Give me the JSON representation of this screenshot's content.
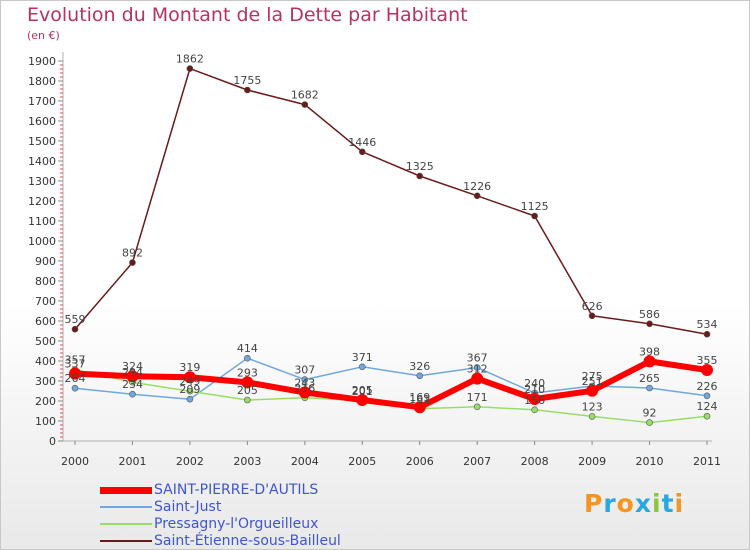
{
  "chart_data": {
    "type": "line",
    "title": "Evolution du Montant de la Dette par Habitant",
    "subtitle": "(en €)",
    "x": [
      "2000",
      "2001",
      "2002",
      "2003",
      "2004",
      "2005",
      "2006",
      "2007",
      "2008",
      "2009",
      "2010",
      "2011"
    ],
    "ylim": [
      0,
      1900
    ],
    "yticks": [
      0,
      100,
      200,
      300,
      400,
      500,
      600,
      700,
      800,
      900,
      1000,
      1100,
      1200,
      1300,
      1400,
      1500,
      1600,
      1700,
      1800,
      1900
    ],
    "grid": false,
    "legend_position": "bottom-left",
    "series": [
      {
        "name": "SAINT-PIERRE-D'AUTILS",
        "color": "#ff0000",
        "values": [
          337,
          324,
          319,
          293,
          243,
          205,
          169,
          312,
          210,
          251,
          398,
          355
        ]
      },
      {
        "name": "Saint-Just",
        "color": "#6fa8dc",
        "values": [
          264,
          234,
          209,
          414,
          307,
          371,
          326,
          367,
          240,
          275,
          265,
          226
        ]
      },
      {
        "name": "Pressagny-l'Orgueilleux",
        "color": "#99dd66",
        "values": [
          357,
          294,
          249,
          205,
          216,
          201,
          161,
          171,
          156,
          123,
          92,
          124
        ]
      },
      {
        "name": "Saint-Étienne-sous-Bailleul",
        "color": "#6b1a1a",
        "values": [
          559,
          892,
          1862,
          1755,
          1682,
          1446,
          1325,
          1226,
          1125,
          626,
          586,
          534
        ]
      }
    ]
  },
  "logo": {
    "text": "Proxiti",
    "letters": [
      "P",
      "r",
      "o",
      "x",
      "i",
      "t",
      "i"
    ],
    "colors": [
      "#f7941d",
      "#29a8e0",
      "#f7941d",
      "#29a8e0",
      "#8cc63f",
      "#29a8e0",
      "#f7941d"
    ]
  }
}
